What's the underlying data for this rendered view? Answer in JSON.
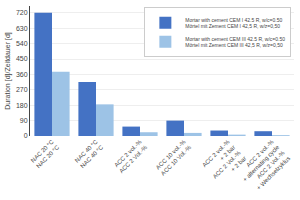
{
  "chart_data": {
    "type": "bar",
    "categories": [
      "NAC 20 °C\nNAC 20 °C",
      "NAC 40 °C\nNAC 40 °C",
      "ACC 2 vol.-%\nACC 2 Vol.-%",
      "ACC 10 vol.-%\nACC 10 Vol.-%",
      "ACC 2 vol.-%\n+ 2 bar\nACC 2 Vol.-%\n+ 2 bar",
      "ACC 2 vol.-%\n+ alternating cycle\nACC 2 Vol.-%\n+ Wechselzyklus"
    ],
    "series": [
      {
        "name": "Mortar with cement CEM I 42.5 R, w/c=0.50\nMörtel mit Zement CEM I 42,5 R, w/z=0,50",
        "color": "#4472C4",
        "values": [
          720,
          315,
          55,
          90,
          32,
          28
        ]
      },
      {
        "name": "Mortar with cement CEM III 42.5 R, w/c=0.50\nMörtel mit Zement CEM III 42,5 R, w/z=0,50",
        "color": "#9DC3E6",
        "values": [
          375,
          185,
          22,
          18,
          8,
          5
        ]
      }
    ],
    "ylabel": "Duration [d]/Zeitdauer [d]",
    "ylim": [
      0,
      760
    ],
    "yticks": [
      0,
      90,
      180,
      270,
      360,
      450,
      540,
      630,
      720
    ],
    "grid": true,
    "legend": "upper right"
  }
}
